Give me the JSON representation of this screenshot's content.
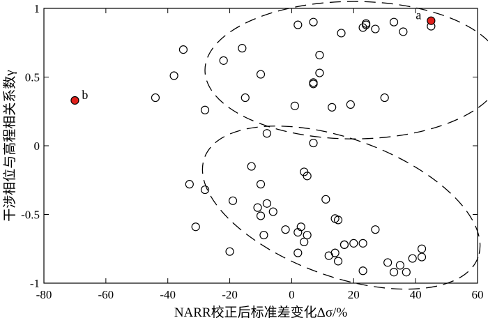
{
  "chart_data": {
    "type": "scatter",
    "title": "",
    "xlabel": "NARR校正后标准差变化Δσ/%",
    "ylabel": "干涉相位与高程相关系数γ",
    "xlim": [
      -80,
      60
    ],
    "ylim": [
      -1,
      1
    ],
    "xticks": [
      -80,
      -60,
      -40,
      -20,
      0,
      20,
      40,
      60
    ],
    "yticks": [
      -1,
      -0.5,
      0,
      0.5,
      1
    ],
    "xtick_labels": [
      "-80",
      "-60",
      "-40",
      "-20",
      "0",
      "20",
      "40",
      "60"
    ],
    "ytick_labels": [
      "-1",
      "-0.5",
      "0",
      "0.5",
      "1"
    ],
    "grid": false,
    "marker_style": {
      "fill": "none",
      "edge_color": "#000000"
    },
    "points": [
      [
        2,
        0.88
      ],
      [
        7,
        0.9
      ],
      [
        16,
        0.82
      ],
      [
        23,
        0.86
      ],
      [
        24,
        0.88
      ],
      [
        24,
        0.89
      ],
      [
        27,
        0.85
      ],
      [
        33,
        0.9
      ],
      [
        36,
        0.83
      ],
      [
        45,
        0.87
      ],
      [
        -35,
        0.7
      ],
      [
        -16,
        0.71
      ],
      [
        9,
        0.66
      ],
      [
        -22,
        0.62
      ],
      [
        -38,
        0.51
      ],
      [
        -10,
        0.52
      ],
      [
        9,
        0.53
      ],
      [
        7,
        0.45
      ],
      [
        7,
        0.46
      ],
      [
        -44,
        0.35
      ],
      [
        -15,
        0.35
      ],
      [
        30,
        0.35
      ],
      [
        -28,
        0.26
      ],
      [
        1,
        0.29
      ],
      [
        13,
        0.28
      ],
      [
        19,
        0.3
      ],
      [
        -8,
        0.09
      ],
      [
        7,
        0.02
      ],
      [
        -13,
        -0.15
      ],
      [
        4,
        -0.19
      ],
      [
        5,
        -0.22
      ],
      [
        -33,
        -0.28
      ],
      [
        -10,
        -0.28
      ],
      [
        -28,
        -0.32
      ],
      [
        11,
        -0.39
      ],
      [
        -19,
        -0.4
      ],
      [
        -8,
        -0.42
      ],
      [
        -11,
        -0.45
      ],
      [
        -6,
        -0.48
      ],
      [
        -10,
        -0.51
      ],
      [
        14,
        -0.53
      ],
      [
        15,
        -0.54
      ],
      [
        3,
        -0.59
      ],
      [
        -2,
        -0.61
      ],
      [
        2,
        -0.63
      ],
      [
        5,
        -0.65
      ],
      [
        27,
        -0.61
      ],
      [
        -31,
        -0.59
      ],
      [
        -9,
        -0.65
      ],
      [
        17,
        -0.72
      ],
      [
        17,
        -0.72
      ],
      [
        4,
        -0.7
      ],
      [
        20,
        -0.71
      ],
      [
        23,
        -0.71
      ],
      [
        -20,
        -0.77
      ],
      [
        2,
        -0.78
      ],
      [
        12,
        -0.8
      ],
      [
        14,
        -0.78
      ],
      [
        15,
        -0.84
      ],
      [
        31,
        -0.85
      ],
      [
        35,
        -0.87
      ],
      [
        39,
        -0.82
      ],
      [
        42,
        -0.81
      ],
      [
        42,
        -0.75
      ],
      [
        23,
        -0.91
      ],
      [
        33,
        -0.92
      ],
      [
        37,
        -0.92
      ]
    ],
    "highlighted_points": [
      {
        "label": "a",
        "x": 45,
        "y": 0.91,
        "color": "#e0201b"
      },
      {
        "label": "b",
        "x": -70,
        "y": 0.33,
        "color": "#e0201b"
      }
    ],
    "annotations": [
      {
        "type": "dashed-ellipse",
        "center": [
          20,
          0.55
        ],
        "semi_axes": [
          48,
          0.5
        ],
        "angle_deg": 0
      },
      {
        "type": "dashed-ellipse",
        "center": [
          16,
          -0.45
        ],
        "semi_axes": [
          47,
          0.5
        ],
        "angle_deg": -20
      }
    ]
  }
}
